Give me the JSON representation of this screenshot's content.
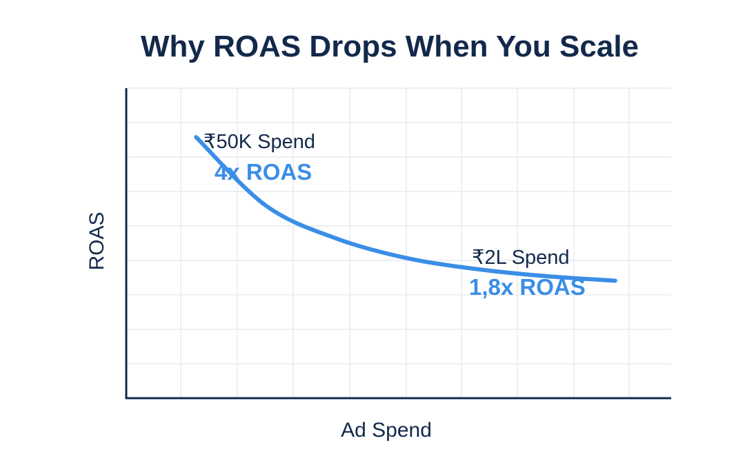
{
  "chart_data": {
    "type": "line",
    "title": "Why ROAS Drops When You Scale",
    "xlabel": "Ad Spend",
    "ylabel": "ROAS",
    "grid": true,
    "x": [
      50000,
      75000,
      100000,
      125000,
      150000,
      175000,
      200000
    ],
    "series": [
      {
        "values": [
          4.0,
          2.95,
          2.45,
          2.15,
          1.98,
          1.87,
          1.8
        ]
      }
    ],
    "xlim": [
      25000,
      225000
    ],
    "ylim": [
      0,
      4.75
    ],
    "annotations": [
      {
        "x": 50000,
        "y": 4.0,
        "spend_label": "₹50K Spend",
        "roas_label": "4x ROAS"
      },
      {
        "x": 200000,
        "y": 1.8,
        "spend_label": "₹2L Spend",
        "roas_label": "1,8x ROAS"
      }
    ]
  },
  "colors": {
    "title": "#13294b",
    "axis": "#13294b",
    "grid": "#e6eaf0",
    "line": "#3a8ee6",
    "ann_spend": "#13294b",
    "ann_roas": "#3a8ee6",
    "background": "#ffffff"
  }
}
